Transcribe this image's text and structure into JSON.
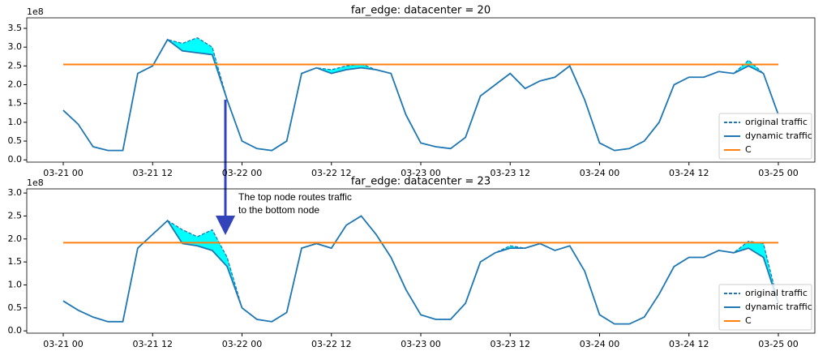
{
  "chart_data": [
    {
      "type": "line",
      "title": "far_edge: datacenter = 20",
      "offset_label": "1e8",
      "x": [
        "03-21 00",
        "03-21 02",
        "03-21 04",
        "03-21 06",
        "03-21 08",
        "03-21 10",
        "03-21 12",
        "03-21 14",
        "03-21 16",
        "03-21 18",
        "03-21 20",
        "03-21 22",
        "03-22 00",
        "03-22 02",
        "03-22 04",
        "03-22 06",
        "03-22 08",
        "03-22 10",
        "03-22 12",
        "03-22 14",
        "03-22 16",
        "03-22 18",
        "03-22 20",
        "03-22 22",
        "03-23 00",
        "03-23 02",
        "03-23 04",
        "03-23 06",
        "03-23 08",
        "03-23 10",
        "03-23 12",
        "03-23 14",
        "03-23 16",
        "03-23 18",
        "03-23 20",
        "03-23 22",
        "03-24 00",
        "03-24 02",
        "03-24 04",
        "03-24 06",
        "03-24 08",
        "03-24 10",
        "03-24 12",
        "03-24 14",
        "03-24 16",
        "03-24 18",
        "03-24 20",
        "03-24 22",
        "03-25 00"
      ],
      "xticks": [
        "03-21 00",
        "03-21 12",
        "03-22 00",
        "03-22 12",
        "03-23 00",
        "03-23 12",
        "03-24 00",
        "03-24 12",
        "03-25 00"
      ],
      "ylim": [
        -0.06,
        3.78
      ],
      "yticks": [
        {
          "value": 0,
          "label": "0.0"
        },
        0.5,
        {
          "value": 1,
          "label": "1.0"
        },
        1.5,
        {
          "value": 2,
          "label": "2.0"
        },
        2.5,
        {
          "value": 3,
          "label": "3.0"
        },
        3.5
      ],
      "fill_color": "#00ffff",
      "legend": "lower right",
      "series": [
        {
          "name": "original traffic",
          "color": "#1f77b4",
          "dashed": true,
          "values": [
            1.32,
            0.95,
            0.35,
            0.25,
            0.25,
            2.3,
            2.5,
            3.2,
            3.1,
            3.25,
            3.0,
            1.6,
            0.5,
            0.3,
            0.25,
            0.5,
            2.3,
            2.45,
            2.4,
            2.5,
            2.55,
            2.4,
            2.3,
            1.2,
            0.45,
            0.35,
            0.3,
            0.6,
            1.7,
            2.0,
            2.3,
            1.9,
            2.1,
            2.2,
            2.5,
            1.6,
            0.45,
            0.25,
            0.3,
            0.5,
            1.0,
            2.0,
            2.2,
            2.2,
            2.35,
            2.3,
            2.65,
            2.3,
            1.2
          ]
        },
        {
          "name": "dynamic traffic",
          "color": "#1f77b4",
          "values": [
            1.32,
            0.95,
            0.35,
            0.25,
            0.25,
            2.3,
            2.5,
            3.2,
            2.9,
            2.85,
            2.8,
            1.6,
            0.5,
            0.3,
            0.25,
            0.5,
            2.3,
            2.45,
            2.3,
            2.4,
            2.45,
            2.4,
            2.3,
            1.2,
            0.45,
            0.35,
            0.3,
            0.6,
            1.7,
            2.0,
            2.3,
            1.9,
            2.1,
            2.2,
            2.5,
            1.6,
            0.45,
            0.25,
            0.3,
            0.5,
            1.0,
            2.0,
            2.2,
            2.2,
            2.35,
            2.3,
            2.5,
            2.3,
            1.2
          ]
        },
        {
          "name": "C",
          "color": "#ff7f0e",
          "constant": 2.54
        }
      ]
    },
    {
      "type": "line",
      "title": "far_edge: datacenter = 23",
      "offset_label": "1e8",
      "x": [
        "03-21 00",
        "03-21 02",
        "03-21 04",
        "03-21 06",
        "03-21 08",
        "03-21 10",
        "03-21 12",
        "03-21 14",
        "03-21 16",
        "03-21 18",
        "03-21 20",
        "03-21 22",
        "03-22 00",
        "03-22 02",
        "03-22 04",
        "03-22 06",
        "03-22 08",
        "03-22 10",
        "03-22 12",
        "03-22 14",
        "03-22 16",
        "03-22 18",
        "03-22 20",
        "03-22 22",
        "03-23 00",
        "03-23 02",
        "03-23 04",
        "03-23 06",
        "03-23 08",
        "03-23 10",
        "03-23 12",
        "03-23 14",
        "03-23 16",
        "03-23 18",
        "03-23 20",
        "03-23 22",
        "03-24 00",
        "03-24 02",
        "03-24 04",
        "03-24 06",
        "03-24 08",
        "03-24 10",
        "03-24 12",
        "03-24 14",
        "03-24 16",
        "03-24 18",
        "03-24 20",
        "03-24 22",
        "03-25 00"
      ],
      "xticks": [
        "03-21 00",
        "03-21 12",
        "03-22 00",
        "03-22 12",
        "03-23 00",
        "03-23 12",
        "03-24 00",
        "03-24 12",
        "03-25 00"
      ],
      "ylim": [
        -0.05,
        3.09
      ],
      "yticks": [
        {
          "value": 0,
          "label": "0.0"
        },
        0.5,
        {
          "value": 1,
          "label": "1.0"
        },
        1.5,
        {
          "value": 2,
          "label": "2.0"
        },
        2.5,
        {
          "value": 3,
          "label": "3.0"
        }
      ],
      "fill_color": "#00ffff",
      "legend": "lower right",
      "annotation": [
        "The top node routes traffic",
        "to the bottom node"
      ],
      "series": [
        {
          "name": "original traffic",
          "color": "#1f77b4",
          "dashed": true,
          "values": [
            0.65,
            0.45,
            0.3,
            0.2,
            0.2,
            1.8,
            2.1,
            2.4,
            2.2,
            2.05,
            2.2,
            1.6,
            0.5,
            0.25,
            0.2,
            0.4,
            1.8,
            1.9,
            1.8,
            2.3,
            2.5,
            2.1,
            1.6,
            0.9,
            0.35,
            0.25,
            0.25,
            0.6,
            1.5,
            1.7,
            1.85,
            1.8,
            1.9,
            1.75,
            1.85,
            1.3,
            0.35,
            0.15,
            0.15,
            0.3,
            0.8,
            1.4,
            1.6,
            1.6,
            1.75,
            1.7,
            1.95,
            1.9,
            0.6
          ]
        },
        {
          "name": "dynamic traffic",
          "color": "#1f77b4",
          "values": [
            0.65,
            0.45,
            0.3,
            0.2,
            0.2,
            1.8,
            2.1,
            2.4,
            1.9,
            1.85,
            1.75,
            1.4,
            0.5,
            0.25,
            0.2,
            0.4,
            1.8,
            1.9,
            1.8,
            2.3,
            2.5,
            2.1,
            1.6,
            0.9,
            0.35,
            0.25,
            0.25,
            0.6,
            1.5,
            1.7,
            1.8,
            1.8,
            1.9,
            1.75,
            1.85,
            1.3,
            0.35,
            0.15,
            0.15,
            0.3,
            0.8,
            1.4,
            1.6,
            1.6,
            1.75,
            1.7,
            1.8,
            1.6,
            0.6
          ]
        },
        {
          "name": "C",
          "color": "#ff7f0e",
          "constant": 1.92
        }
      ]
    }
  ]
}
